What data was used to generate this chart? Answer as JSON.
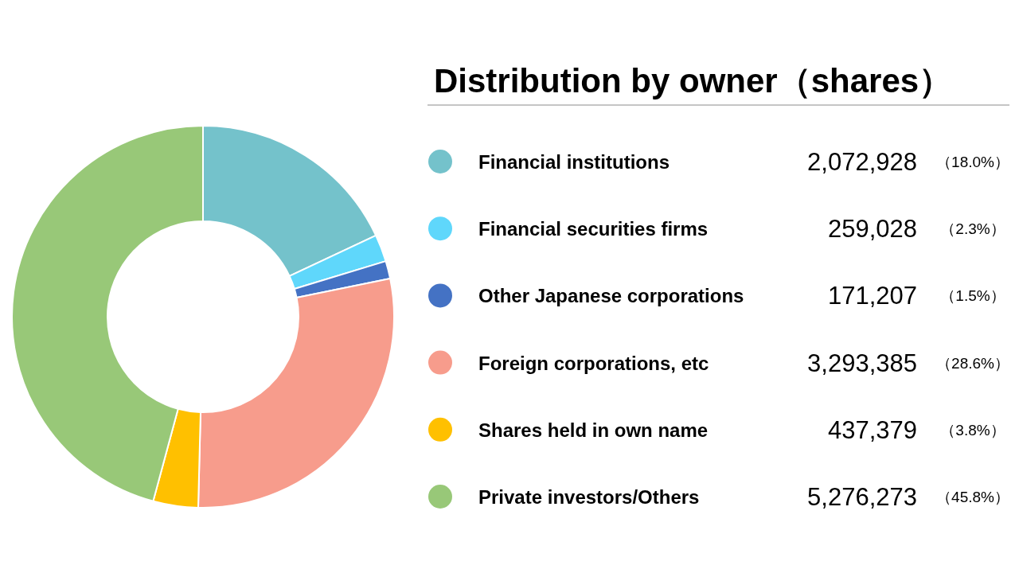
{
  "chart_data": {
    "type": "donut",
    "title": "Distribution by owner（shares）",
    "categories": [
      "Financial institutions",
      "Financial securities firms",
      "Other Japanese corporations",
      "Foreign corporations, etc",
      "Shares held in own name",
      "Private investors/Others"
    ],
    "values": [
      18.0,
      2.3,
      1.5,
      28.6,
      3.8,
      45.8
    ],
    "colors": [
      "#74c2cb",
      "#5fd7fb",
      "#4472c4",
      "#f79c8c",
      "#ffc000",
      "#98c878"
    ],
    "value_labels": [
      "（18.0%）",
      "（2.3%）",
      "（1.5%）",
      "（28.6%）",
      "（3.8%）",
      "（45.8%）"
    ],
    "annotations": [
      "2,072,928",
      "259,028",
      "171,207",
      "3,293,385",
      "437,379",
      "5,276,273"
    ],
    "legend": "right"
  }
}
